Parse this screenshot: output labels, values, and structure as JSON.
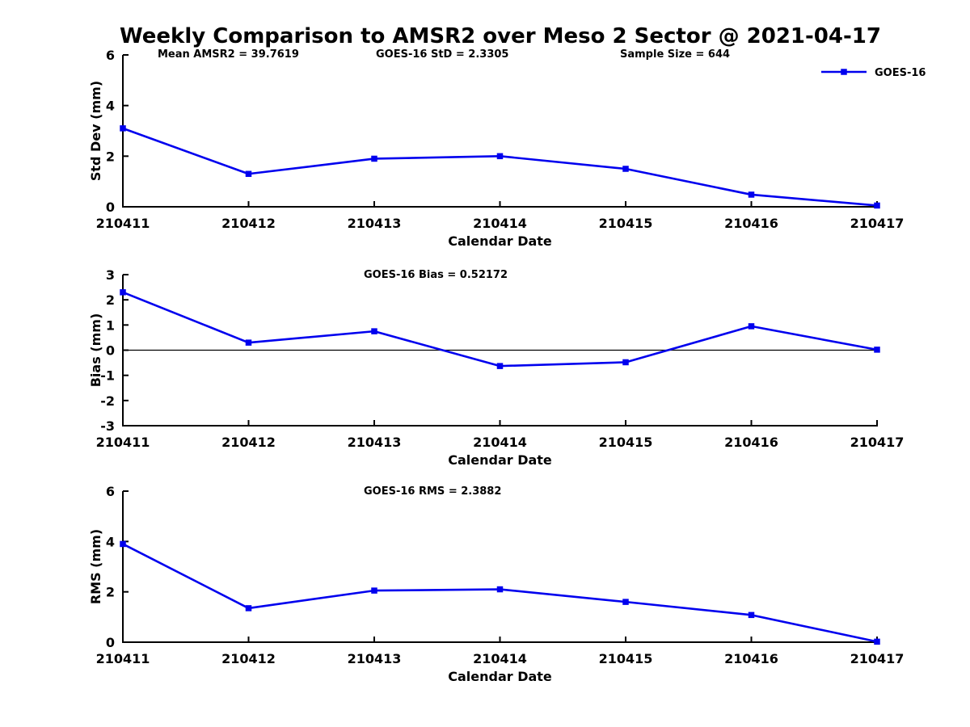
{
  "figure": {
    "title": "Weekly Comparison to AMSR2 over Meso 2 Sector @ 2021-04-17",
    "background_color": "#ffffff",
    "axis_color": "#000000",
    "series_color": "#0000EE"
  },
  "legend": {
    "label": "GOES-16",
    "position": "top-right",
    "marker": "filled-square",
    "color": "#0000EE"
  },
  "stats": {
    "mean_amsr2": "39.7619",
    "goes16_std": "2.3305",
    "sample_size": "644",
    "goes16_bias": "0.52172",
    "goes16_rms": "2.3882"
  },
  "chart_data": [
    {
      "type": "line",
      "id": "stddev",
      "title": "",
      "xlabel": "Calendar Date",
      "ylabel": "Std Dev (mm)",
      "categories": [
        "210411",
        "210412",
        "210413",
        "210414",
        "210415",
        "210416",
        "210417"
      ],
      "series": [
        {
          "name": "GOES-16",
          "color": "#0000EE",
          "marker": "square",
          "values": [
            3.1,
            1.3,
            1.9,
            2.0,
            1.5,
            0.48,
            0.05
          ]
        }
      ],
      "ylim": [
        0,
        6
      ],
      "yticks": [
        0,
        2,
        4,
        6
      ],
      "grid": false,
      "zero_line": false,
      "legend_visible": true,
      "annotations": [
        {
          "text": "Mean AMSR2 = 39.7619"
        },
        {
          "text": "GOES-16 StD = 2.3305"
        },
        {
          "text": "Sample Size = 644"
        }
      ]
    },
    {
      "type": "line",
      "id": "bias",
      "title": "",
      "xlabel": "Calendar Date",
      "ylabel": "Bias (mm)",
      "categories": [
        "210411",
        "210412",
        "210413",
        "210414",
        "210415",
        "210416",
        "210417"
      ],
      "series": [
        {
          "name": "GOES-16",
          "color": "#0000EE",
          "marker": "square",
          "values": [
            2.3,
            0.3,
            0.75,
            -0.63,
            -0.48,
            0.95,
            0.02
          ]
        }
      ],
      "ylim": [
        -3,
        3
      ],
      "yticks": [
        -3,
        -2,
        -1,
        0,
        1,
        2,
        3
      ],
      "grid": false,
      "zero_line": true,
      "legend_visible": false,
      "annotations": [
        {
          "text": "GOES-16 Bias  = 0.52172"
        }
      ]
    },
    {
      "type": "line",
      "id": "rms",
      "title": "",
      "xlabel": "Calendar Date",
      "ylabel": "RMS (mm)",
      "categories": [
        "210411",
        "210412",
        "210413",
        "210414",
        "210415",
        "210416",
        "210417"
      ],
      "series": [
        {
          "name": "GOES-16",
          "color": "#0000EE",
          "marker": "square",
          "values": [
            3.9,
            1.35,
            2.05,
            2.1,
            1.6,
            1.08,
            0.02
          ]
        }
      ],
      "ylim": [
        0,
        6
      ],
      "yticks": [
        0,
        2,
        4,
        6
      ],
      "grid": false,
      "zero_line": false,
      "legend_visible": false,
      "annotations": [
        {
          "text": "GOES-16 RMS = 2.3882"
        }
      ]
    }
  ]
}
